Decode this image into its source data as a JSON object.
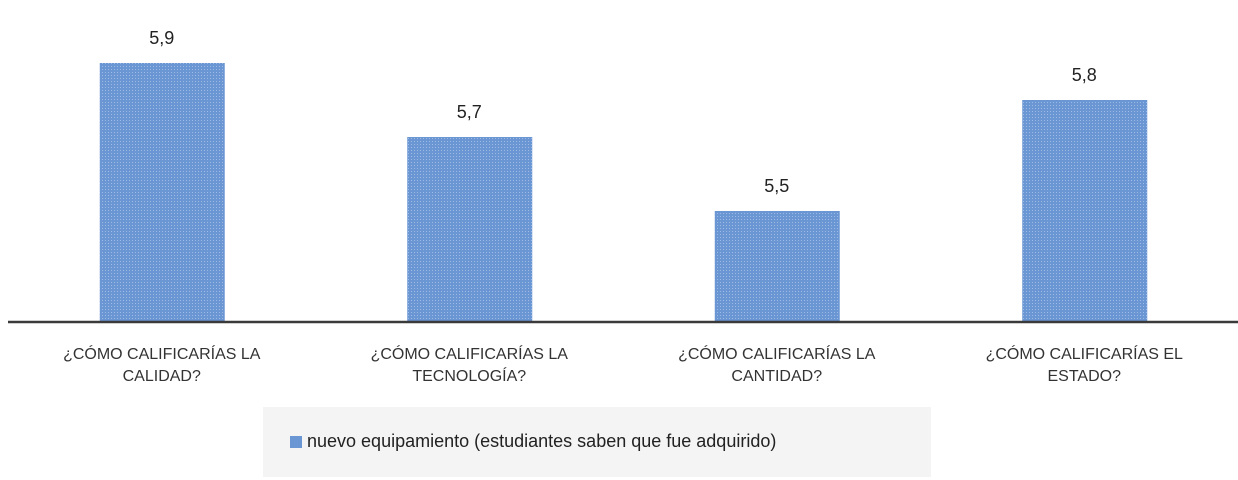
{
  "chart_data": {
    "type": "bar",
    "categories": [
      "¿CÓMO CALIFICARÍAS LA CALIDAD?",
      "¿CÓMO CALIFICARÍAS LA TECNOLOGÍA?",
      "¿CÓMO CALIFICARÍAS LA CANTIDAD?",
      "¿CÓMO CALIFICARÍAS EL ESTADO?"
    ],
    "series": [
      {
        "name": "nuevo equipamiento (estudiantes saben que fue adquirido)",
        "color": "#6b96d4",
        "values": [
          5.9,
          5.7,
          5.5,
          5.8
        ],
        "value_labels": [
          "5,9",
          "5,7",
          "5,5",
          "5,8"
        ]
      }
    ],
    "ylim": [
      5.2,
      6.0
    ],
    "legend": "bottom"
  }
}
